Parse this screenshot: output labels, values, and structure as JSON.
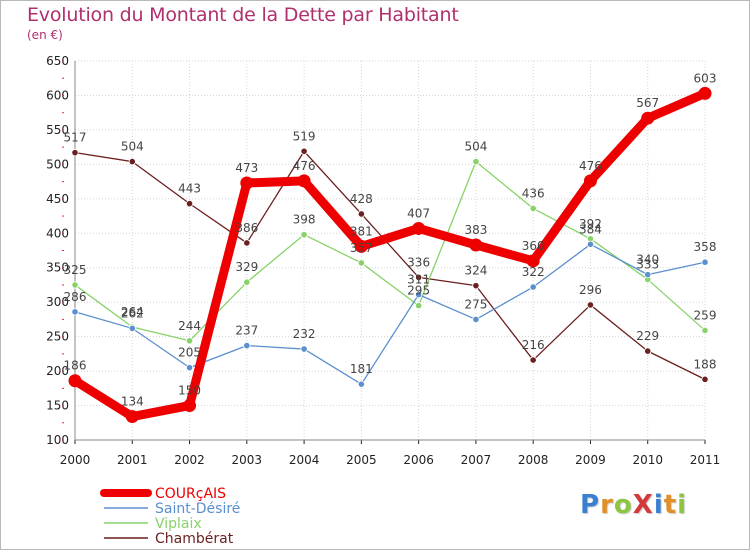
{
  "title": "Evolution du Montant de la Dette par Habitant",
  "subtitle": "(en €)",
  "logo": {
    "text": "ProXiti",
    "letters": [
      {
        "ch": "P",
        "color": "#3a7fd0"
      },
      {
        "ch": "r",
        "color": "#e0902a"
      },
      {
        "ch": "o",
        "color": "#8cc540"
      },
      {
        "ch": "X",
        "color": "#d23a3a"
      },
      {
        "ch": "i",
        "color": "#3a7fd0"
      },
      {
        "ch": "t",
        "color": "#e0902a"
      },
      {
        "ch": "i",
        "color": "#8cc540"
      }
    ]
  },
  "chart_data": {
    "type": "line",
    "title": "Evolution du Montant de la Dette par Habitant",
    "ylabel": "(en €)",
    "xlabel": "",
    "x": [
      "2000",
      "2001",
      "2002",
      "2003",
      "2004",
      "2005",
      "2006",
      "2007",
      "2008",
      "2009",
      "2010",
      "2011"
    ],
    "ylim": [
      100,
      650
    ],
    "yticks": [
      100,
      150,
      200,
      250,
      300,
      350,
      400,
      450,
      500,
      550,
      600,
      650
    ],
    "grid": true,
    "legend": "bottom-left",
    "series": [
      {
        "name": "COURçAIS",
        "color": "#ee0000",
        "values": [
          186,
          134,
          150,
          473,
          476,
          381,
          407,
          383,
          360,
          476,
          567,
          603
        ]
      },
      {
        "name": "Saint-Désiré",
        "color": "#5b8fcf",
        "values": [
          286,
          262,
          205,
          237,
          232,
          181,
          311,
          275,
          322,
          384,
          340,
          358
        ]
      },
      {
        "name": "Viplaix",
        "color": "#88d26a",
        "values": [
          325,
          264,
          244,
          329,
          398,
          357,
          295,
          504,
          436,
          392,
          333,
          259
        ]
      },
      {
        "name": "Chambérat",
        "color": "#6b1f1f",
        "values": [
          517,
          504,
          443,
          386,
          519,
          428,
          336,
          324,
          216,
          296,
          229,
          188
        ]
      }
    ],
    "label_colors": {
      "axis": "#222222",
      "grid": "#d5d5d5",
      "tick": "#e03030",
      "data": "#444444"
    }
  }
}
